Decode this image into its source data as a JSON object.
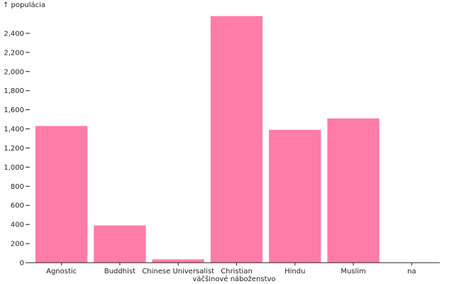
{
  "chart_data": {
    "type": "bar",
    "ylabel": "↑ populácia",
    "xlabel": "väčšinové náboženstvo",
    "categories": [
      "Agnostic",
      "Buddhist",
      "Chinese Universalist",
      "Christian",
      "Hindu",
      "Muslim",
      "na"
    ],
    "values": [
      1430,
      390,
      35,
      2580,
      1390,
      1510,
      0
    ],
    "ylim": [
      0,
      2600
    ],
    "yticks": [
      0,
      200,
      400,
      600,
      800,
      1000,
      1200,
      1400,
      1600,
      1800,
      2000,
      2200,
      2400
    ],
    "ytick_labels": [
      "0",
      "200",
      "400",
      "600",
      "800",
      "1,000",
      "1,200",
      "1,400",
      "1,600",
      "1,800",
      "2,000",
      "2,200",
      "2,400"
    ],
    "colors": {
      "bar": "#ff7ba8"
    },
    "grid": false
  }
}
